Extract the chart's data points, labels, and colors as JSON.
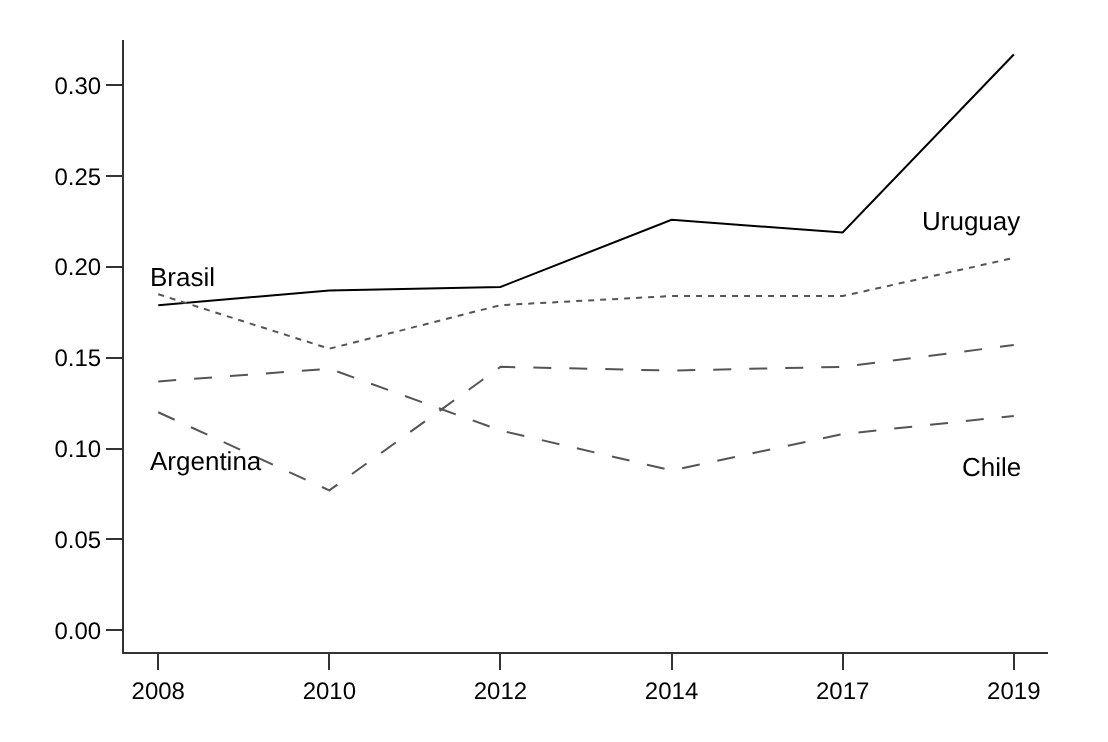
{
  "chart_data": {
    "type": "line",
    "categories": [
      "2008",
      "2010",
      "2012",
      "2014",
      "2017",
      "2019"
    ],
    "series": [
      {
        "name": "Brasil",
        "color": "#000000",
        "line_style": "solid",
        "values": [
          0.179,
          0.187,
          0.189,
          0.226,
          0.219,
          0.317
        ]
      },
      {
        "name": "Uruguay",
        "color": "#555555",
        "line_style": "dotted",
        "values": [
          0.185,
          0.155,
          0.179,
          0.184,
          0.184,
          0.205
        ]
      },
      {
        "name": "Argentina",
        "color": "#555555",
        "line_style": "dashed",
        "values": [
          0.12,
          0.077,
          0.145,
          0.143,
          0.145,
          0.157
        ]
      },
      {
        "name": "Chile",
        "color": "#555555",
        "line_style": "dashed",
        "values": [
          0.137,
          0.144,
          0.11,
          0.088,
          0.108,
          0.118
        ]
      }
    ],
    "ylim": [
      -0.012,
      0.325
    ],
    "yticks": [
      {
        "value": 0,
        "label": "0.00"
      },
      {
        "value": 0.05,
        "label": "0.05"
      },
      {
        "value": 0.1,
        "label": "0.10"
      },
      {
        "value": 0.15,
        "label": "0.15"
      },
      {
        "value": 0.2,
        "label": "0.20"
      },
      {
        "value": 0.25,
        "label": "0.25"
      },
      {
        "value": 0.3,
        "label": "0.30"
      }
    ],
    "legend": false,
    "marker": "none"
  }
}
